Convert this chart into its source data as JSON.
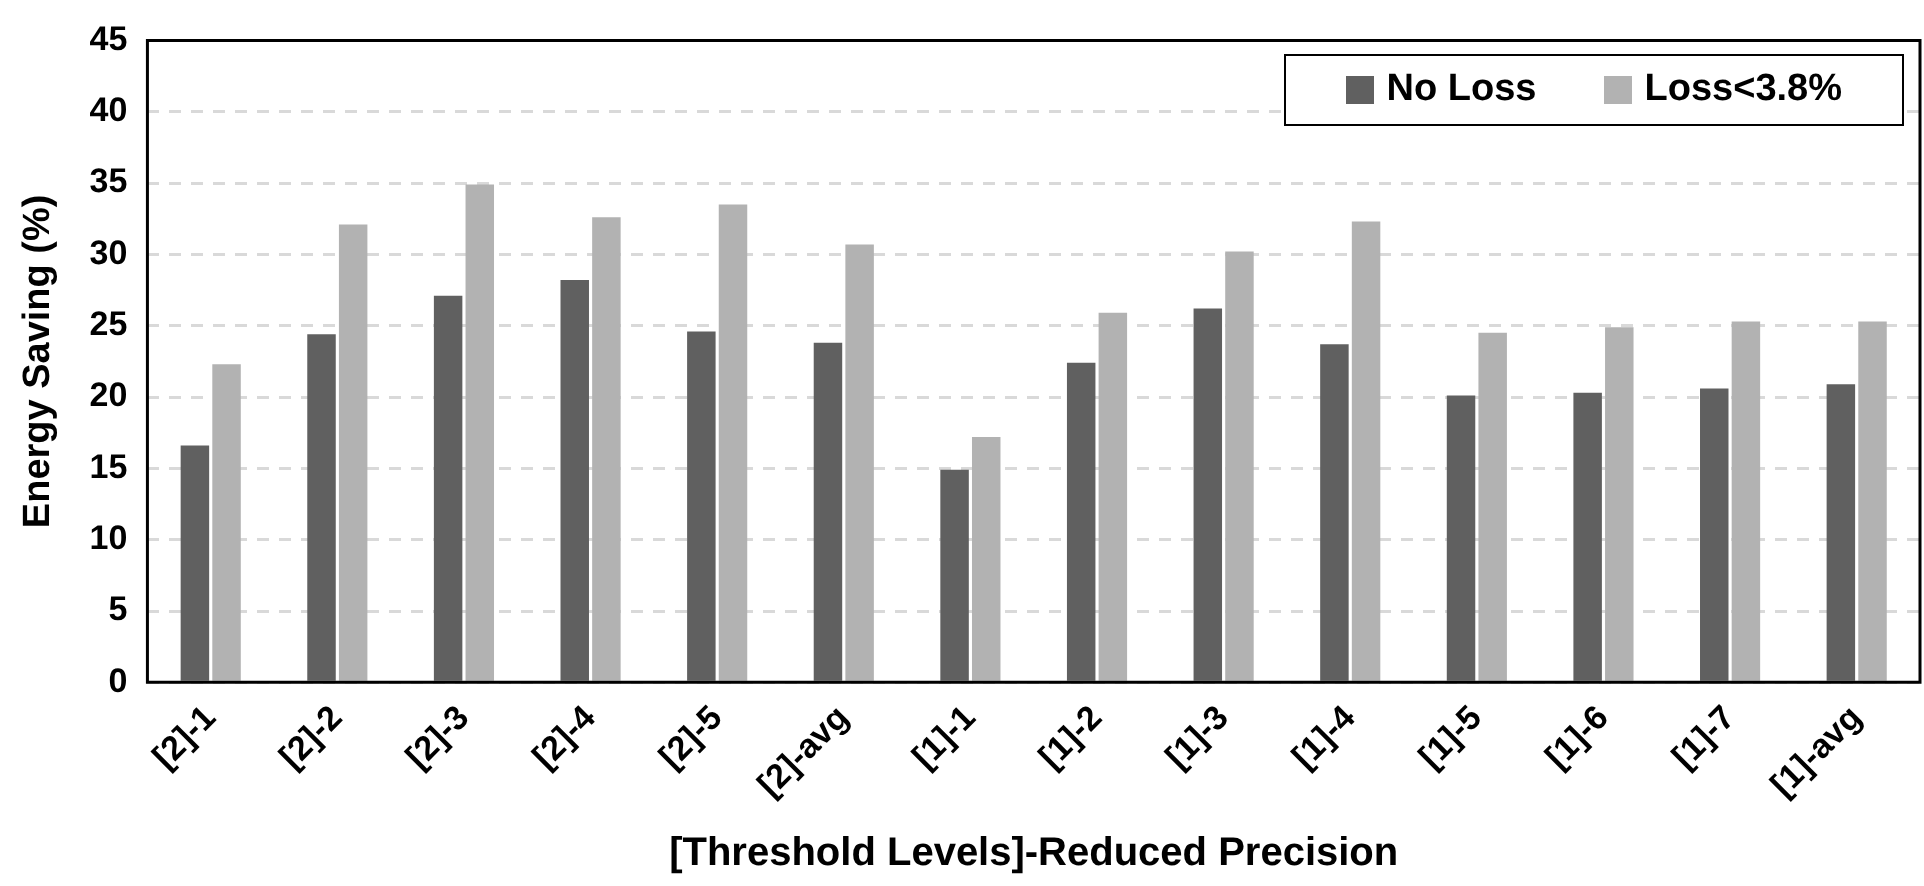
{
  "chart_data": {
    "type": "bar",
    "xlabel": "[Threshold Levels]-Reduced Precision",
    "ylabel": "Energy Saving (%)",
    "categories": [
      "[2]-1",
      "[2]-2",
      "[2]-3",
      "[2]-4",
      "[2]-5",
      "[2]-avg",
      "[1]-1",
      "[1]-2",
      "[1]-3",
      "[1]-4",
      "[1]-5",
      "[1]-6",
      "[1]-7",
      "[1]-avg"
    ],
    "series": [
      {
        "name": "No Loss",
        "color": "#606060",
        "values": [
          16.6,
          24.4,
          27.1,
          28.2,
          24.6,
          23.8,
          14.9,
          22.4,
          26.2,
          23.7,
          20.1,
          20.3,
          20.6,
          20.9
        ]
      },
      {
        "name": "Loss<3.8%",
        "color": "#b2b2b2",
        "values": [
          22.3,
          32.1,
          34.9,
          32.6,
          33.5,
          30.7,
          17.2,
          25.9,
          30.2,
          32.3,
          24.5,
          24.9,
          25.3,
          25.3
        ]
      }
    ],
    "ylim": [
      0,
      45
    ],
    "yticks": [
      0,
      5,
      10,
      15,
      20,
      25,
      30,
      35,
      40,
      45
    ],
    "grid": "y",
    "legend": "top right"
  }
}
